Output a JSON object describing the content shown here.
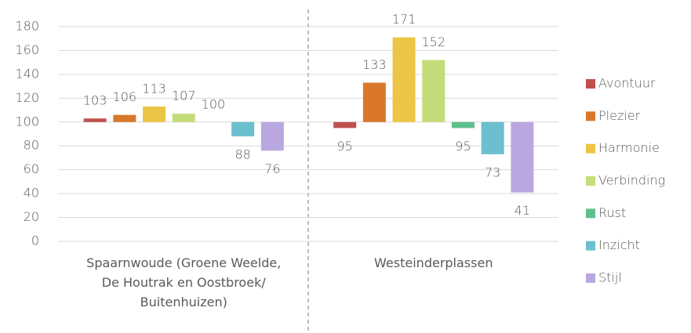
{
  "chart_data": {
    "type": "bar",
    "categories": [
      "Spaarnwoude (Groene Weelde,\nDe Houtrak en Oostbroek/\nBuitenhuizen)",
      "Westeinderplassen"
    ],
    "series": [
      {
        "name": "Avontuur",
        "color": "#c0504d",
        "values": [
          103,
          95
        ]
      },
      {
        "name": "Plezier",
        "color": "#d9782a",
        "values": [
          106,
          133
        ]
      },
      {
        "name": "Harmonie",
        "color": "#ecc546",
        "values": [
          113,
          171
        ]
      },
      {
        "name": "Verbinding",
        "color": "#c5dc7a",
        "values": [
          107,
          152
        ]
      },
      {
        "name": "Rust",
        "color": "#5fbf8c",
        "values": [
          100,
          95
        ]
      },
      {
        "name": "Inzicht",
        "color": "#6cbfcf",
        "values": [
          88,
          73
        ]
      },
      {
        "name": "Stijl",
        "color": "#b9a8e0",
        "values": [
          76,
          41
        ]
      }
    ],
    "bar_base": 100,
    "ylim": [
      0,
      180
    ],
    "yticks": [
      0,
      20,
      40,
      60,
      80,
      100,
      120,
      140,
      160,
      180
    ],
    "grid": true,
    "legend": "right",
    "data_labels": true
  }
}
